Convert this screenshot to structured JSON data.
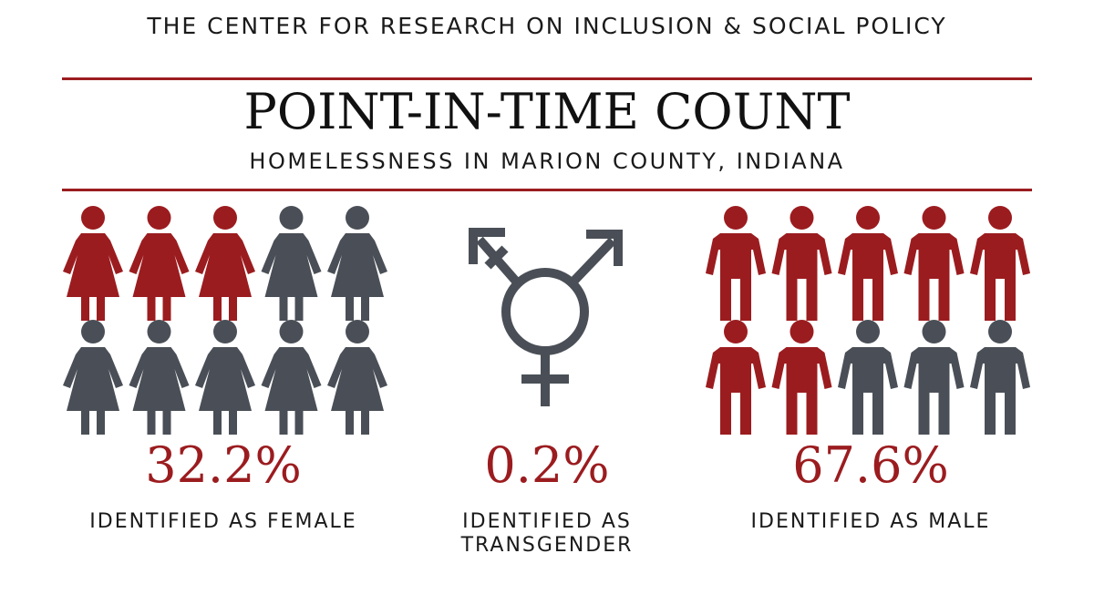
{
  "header": {
    "org": "THE CENTER FOR RESEARCH ON INCLUSION & SOCIAL POLICY",
    "title": "POINT-IN-TIME COUNT",
    "subtitle": "HOMELESSNESS IN MARION COUNTY, INDIANA"
  },
  "colors": {
    "accent": "#9b1c1f",
    "neutral": "#4a4f57"
  },
  "chart_data": {
    "type": "pictograph",
    "icons_per_group": 10,
    "categories": [
      {
        "key": "female",
        "percent": 32.2,
        "percent_label": "32.2%",
        "label": "IDENTIFIED AS FEMALE",
        "icon": "female-figure-icon",
        "highlighted_icons": 3
      },
      {
        "key": "transgender",
        "percent": 0.2,
        "percent_label": "0.2%",
        "label_lines": [
          "IDENTIFIED AS",
          "TRANSGENDER"
        ],
        "icon": "transgender-symbol-icon"
      },
      {
        "key": "male",
        "percent": 67.6,
        "percent_label": "67.6%",
        "label": "IDENTIFIED AS MALE",
        "icon": "male-figure-icon",
        "highlighted_icons": 7
      }
    ]
  }
}
